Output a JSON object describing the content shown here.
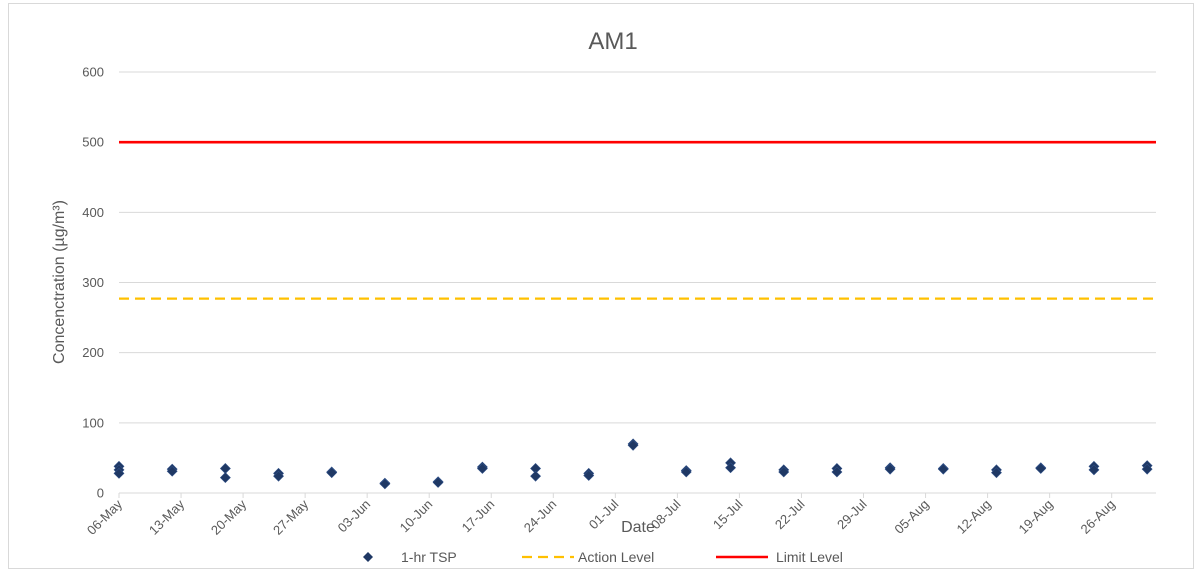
{
  "chart_data": {
    "type": "scatter",
    "title": "AM1",
    "xlabel": "Date",
    "ylabel": "Concenctration (µg/m³)",
    "ylim": [
      0,
      600
    ],
    "yticks": [
      "0",
      "100",
      "200",
      "300",
      "400",
      "500",
      "600"
    ],
    "xlim": [
      "2023-05-06",
      "2023-08-31"
    ],
    "xticks": [
      {
        "date": "2023-05-06",
        "label": "06-May"
      },
      {
        "date": "2023-05-13",
        "label": "13-May"
      },
      {
        "date": "2023-05-20",
        "label": "20-May"
      },
      {
        "date": "2023-05-27",
        "label": "27-May"
      },
      {
        "date": "2023-06-03",
        "label": "03-Jun"
      },
      {
        "date": "2023-06-10",
        "label": "10-Jun"
      },
      {
        "date": "2023-06-17",
        "label": "17-Jun"
      },
      {
        "date": "2023-06-24",
        "label": "24-Jun"
      },
      {
        "date": "2023-07-01",
        "label": "01-Jul"
      },
      {
        "date": "2023-07-08",
        "label": "08-Jul"
      },
      {
        "date": "2023-07-15",
        "label": "15-Jul"
      },
      {
        "date": "2023-07-22",
        "label": "22-Jul"
      },
      {
        "date": "2023-07-29",
        "label": "29-Jul"
      },
      {
        "date": "2023-08-05",
        "label": "05-Aug"
      },
      {
        "date": "2023-08-12",
        "label": "12-Aug"
      },
      {
        "date": "2023-08-19",
        "label": "19-Aug"
      },
      {
        "date": "2023-08-26",
        "label": "26-Aug"
      }
    ],
    "grid": true,
    "legend_position": "bottom",
    "series": [
      {
        "name": "1-hr TSP",
        "kind": "scatter",
        "marker": "diamond",
        "color": "#1f3864",
        "points": [
          {
            "x": "2023-05-06",
            "y": 38
          },
          {
            "x": "2023-05-06",
            "y": 33
          },
          {
            "x": "2023-05-06",
            "y": 28
          },
          {
            "x": "2023-05-12",
            "y": 34
          },
          {
            "x": "2023-05-12",
            "y": 31
          },
          {
            "x": "2023-05-18",
            "y": 35
          },
          {
            "x": "2023-05-18",
            "y": 22
          },
          {
            "x": "2023-05-24",
            "y": 28
          },
          {
            "x": "2023-05-24",
            "y": 24
          },
          {
            "x": "2023-05-30",
            "y": 30
          },
          {
            "x": "2023-05-30",
            "y": 29
          },
          {
            "x": "2023-06-05",
            "y": 14
          },
          {
            "x": "2023-06-05",
            "y": 13
          },
          {
            "x": "2023-06-11",
            "y": 16
          },
          {
            "x": "2023-06-11",
            "y": 15
          },
          {
            "x": "2023-06-16",
            "y": 37
          },
          {
            "x": "2023-06-16",
            "y": 35
          },
          {
            "x": "2023-06-22",
            "y": 35
          },
          {
            "x": "2023-06-22",
            "y": 24
          },
          {
            "x": "2023-06-28",
            "y": 28
          },
          {
            "x": "2023-06-28",
            "y": 25
          },
          {
            "x": "2023-07-03",
            "y": 70
          },
          {
            "x": "2023-07-03",
            "y": 68
          },
          {
            "x": "2023-07-09",
            "y": 32
          },
          {
            "x": "2023-07-09",
            "y": 30
          },
          {
            "x": "2023-07-14",
            "y": 43
          },
          {
            "x": "2023-07-14",
            "y": 36
          },
          {
            "x": "2023-07-20",
            "y": 33
          },
          {
            "x": "2023-07-20",
            "y": 30
          },
          {
            "x": "2023-07-26",
            "y": 35
          },
          {
            "x": "2023-07-26",
            "y": 30
          },
          {
            "x": "2023-08-01",
            "y": 36
          },
          {
            "x": "2023-08-01",
            "y": 34
          },
          {
            "x": "2023-08-07",
            "y": 35
          },
          {
            "x": "2023-08-07",
            "y": 34
          },
          {
            "x": "2023-08-13",
            "y": 33
          },
          {
            "x": "2023-08-13",
            "y": 29
          },
          {
            "x": "2023-08-18",
            "y": 36
          },
          {
            "x": "2023-08-18",
            "y": 35
          },
          {
            "x": "2023-08-24",
            "y": 38
          },
          {
            "x": "2023-08-24",
            "y": 33
          },
          {
            "x": "2023-08-30",
            "y": 39
          },
          {
            "x": "2023-08-30",
            "y": 34
          }
        ]
      },
      {
        "name": "Action Level",
        "kind": "line",
        "style": "dashed",
        "color": "#ffc000",
        "value": 277
      },
      {
        "name": "Limit Level",
        "kind": "line",
        "style": "solid",
        "color": "#ff0000",
        "value": 500
      }
    ]
  }
}
